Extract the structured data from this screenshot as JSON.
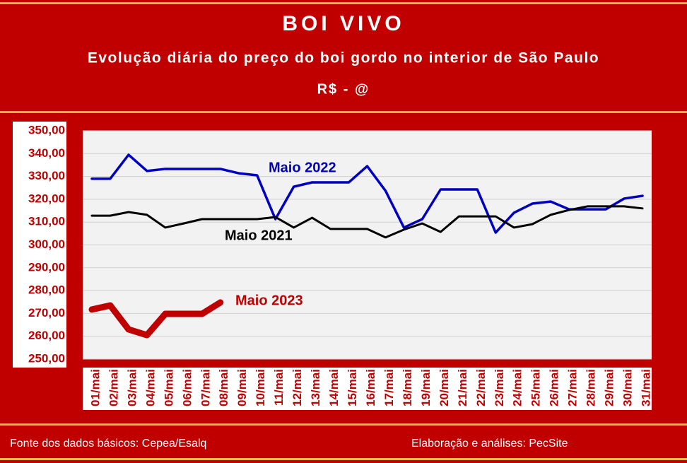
{
  "chart_data": {
    "type": "line",
    "title": "BOI VIVO",
    "subtitle": "Evolução diária do preço do boi gordo no interior de São Paulo",
    "unit": "R$ - @",
    "source": "Fonte dos dados básicos: Cepea/Esalq",
    "credit": "Elaboração e análises: PecSite",
    "categories": [
      "01/mai",
      "02/mai",
      "03/mai",
      "04/mai",
      "05/mai",
      "06/mai",
      "07/mai",
      "08/mai",
      "09/mai",
      "10/mai",
      "11/mai",
      "12/mai",
      "13/mai",
      "14/mai",
      "15/mai",
      "16/mai",
      "17/mai",
      "18/mai",
      "19/mai",
      "20/mai",
      "21/mai",
      "22/mai",
      "23/mai",
      "24/mai",
      "25/mai",
      "26/mai",
      "27/mai",
      "28/mai",
      "29/mai",
      "30/mai",
      "31/mai"
    ],
    "series": [
      {
        "name": "Maio 2022",
        "color": "#0000c0",
        "values": [
          329,
          329,
          339.5,
          332.4,
          333.3,
          333.3,
          333.3,
          333.3,
          331.4,
          330.5,
          311.3,
          325.5,
          327.4,
          327.4,
          327.4,
          334.5,
          323.7,
          307.6,
          311.3,
          324.3,
          324.3,
          324.3,
          305.4,
          314.1,
          318.1,
          319,
          315.6,
          315.6,
          315.6,
          320.3,
          321.5
        ]
      },
      {
        "name": "Maio 2021",
        "color": "#000000",
        "values": [
          312.8,
          312.8,
          314.4,
          313.2,
          307.6,
          309.4,
          311.3,
          311.3,
          311.3,
          311.3,
          312.2,
          307.6,
          311.9,
          307,
          307,
          307,
          303.3,
          306.7,
          309.4,
          305.7,
          312.5,
          312.5,
          312.5,
          307.6,
          309.1,
          313.2,
          315.3,
          316.9,
          316.9,
          316.9,
          316
        ]
      },
      {
        "name": "Maio 2023",
        "color": "#c00000",
        "values": [
          271.7,
          273.5,
          263,
          260.5,
          269.8,
          269.8,
          269.8,
          274.8,
          null,
          null,
          null,
          null,
          null,
          null,
          null,
          null,
          null,
          null,
          null,
          null,
          null,
          null,
          null,
          null,
          null,
          null,
          null,
          null,
          null,
          null,
          null
        ]
      }
    ],
    "ylim": [
      250,
      350
    ],
    "yticks": [
      {
        "value": 250,
        "label": "250,00"
      },
      {
        "value": 260,
        "label": "260,00"
      },
      {
        "value": 270,
        "label": "270,00"
      },
      {
        "value": 280,
        "label": "280,00"
      },
      {
        "value": 290,
        "label": "290,00"
      },
      {
        "value": 300,
        "label": "300,00"
      },
      {
        "value": 310,
        "label": "310,00"
      },
      {
        "value": 320,
        "label": "320,00"
      },
      {
        "value": 330,
        "label": "330,00"
      },
      {
        "value": 340,
        "label": "340,00"
      },
      {
        "value": 350,
        "label": "350,00"
      }
    ],
    "grid": true
  }
}
